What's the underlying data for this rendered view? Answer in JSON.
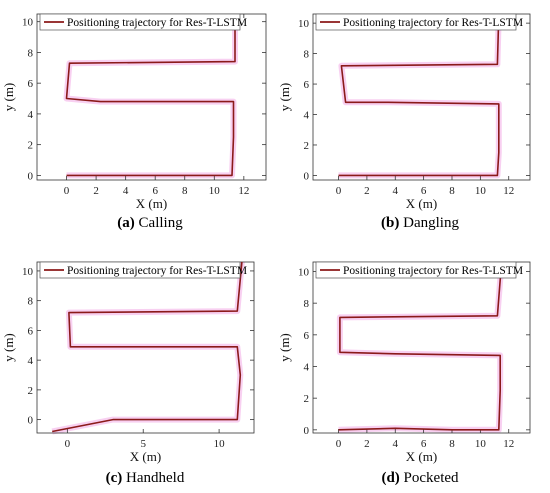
{
  "colors": {
    "trajectory": "#8b1a1a",
    "glow": "#f7c8ee",
    "axis": "#333333"
  },
  "chart_data": [
    {
      "type": "line",
      "panel": "a",
      "caption_letter": "(a)",
      "caption_text": "Calling",
      "xlabel": "X (m)",
      "ylabel": "y (m)",
      "xlim": [
        -2,
        13.5
      ],
      "ylim": [
        -0.3,
        10.5
      ],
      "xticks": [
        0,
        2,
        4,
        6,
        8,
        10,
        12
      ],
      "yticks": [
        0,
        2,
        4,
        6,
        8,
        10
      ],
      "legend": "top-left",
      "series": [
        {
          "name": "Positioning trajectory for  Res-T-LSTM",
          "points": [
            [
              0,
              0
            ],
            [
              11.2,
              0
            ],
            [
              11.3,
              2.5
            ],
            [
              11.3,
              4.8
            ],
            [
              2.3,
              4.8
            ],
            [
              0,
              5.0
            ],
            [
              0.2,
              7.3
            ],
            [
              11.4,
              7.4
            ],
            [
              11.4,
              10.5
            ]
          ]
        }
      ]
    },
    {
      "type": "line",
      "panel": "b",
      "caption_letter": "(b)",
      "caption_text": "Dangling",
      "xlabel": "X (m)",
      "ylabel": "y (m)",
      "xlim": [
        -1.8,
        13.5
      ],
      "ylim": [
        -0.3,
        10.6
      ],
      "xticks": [
        0,
        2,
        4,
        6,
        8,
        10,
        12
      ],
      "yticks": [
        0,
        2,
        4,
        6,
        8,
        10
      ],
      "legend": "top-left",
      "series": [
        {
          "name": "Positioning trajectory for  Res-T-LSTM",
          "points": [
            [
              0,
              0
            ],
            [
              11.2,
              0
            ],
            [
              11.3,
              1.5
            ],
            [
              11.3,
              4.7
            ],
            [
              3.5,
              4.8
            ],
            [
              0.5,
              4.8
            ],
            [
              0.2,
              7.2
            ],
            [
              11.2,
              7.3
            ],
            [
              11.3,
              10.6
            ]
          ]
        }
      ]
    },
    {
      "type": "line",
      "panel": "c",
      "caption_letter": "(c)",
      "caption_text": "Handheld",
      "xlabel": "X (m)",
      "ylabel": "y (m)",
      "xlim": [
        -2,
        12.3
      ],
      "ylim": [
        -0.9,
        10.6
      ],
      "xticks": [
        0,
        5,
        10
      ],
      "yticks": [
        0,
        2,
        4,
        6,
        8,
        10
      ],
      "legend": "top-left",
      "series": [
        {
          "name": "Positioning trajectory for  Res-T-LSTM",
          "points": [
            [
              -1,
              -0.8
            ],
            [
              3,
              0
            ],
            [
              11.2,
              0
            ],
            [
              11.4,
              3
            ],
            [
              11.2,
              4.9
            ],
            [
              0.2,
              4.9
            ],
            [
              0.1,
              7.2
            ],
            [
              11.2,
              7.3
            ],
            [
              11.5,
              10.6
            ]
          ]
        }
      ]
    },
    {
      "type": "line",
      "panel": "d",
      "caption_letter": "(d)",
      "caption_text": "Pocketed",
      "xlabel": "X (m)",
      "ylabel": "y (m)",
      "xlim": [
        -1.8,
        13.5
      ],
      "ylim": [
        -0.2,
        10.6
      ],
      "xticks": [
        0,
        2,
        4,
        6,
        8,
        10,
        12
      ],
      "yticks": [
        0,
        2,
        4,
        6,
        8,
        10
      ],
      "legend": "top-left",
      "series": [
        {
          "name": "Positioning trajectory for  Res-T-LSTM",
          "points": [
            [
              0,
              0
            ],
            [
              4,
              0.1
            ],
            [
              8,
              0
            ],
            [
              11.3,
              0
            ],
            [
              11.4,
              2.5
            ],
            [
              11.4,
              4.7
            ],
            [
              4,
              4.8
            ],
            [
              0.1,
              4.9
            ],
            [
              0.1,
              7.1
            ],
            [
              11.2,
              7.2
            ],
            [
              11.5,
              10.6
            ]
          ]
        }
      ]
    }
  ]
}
